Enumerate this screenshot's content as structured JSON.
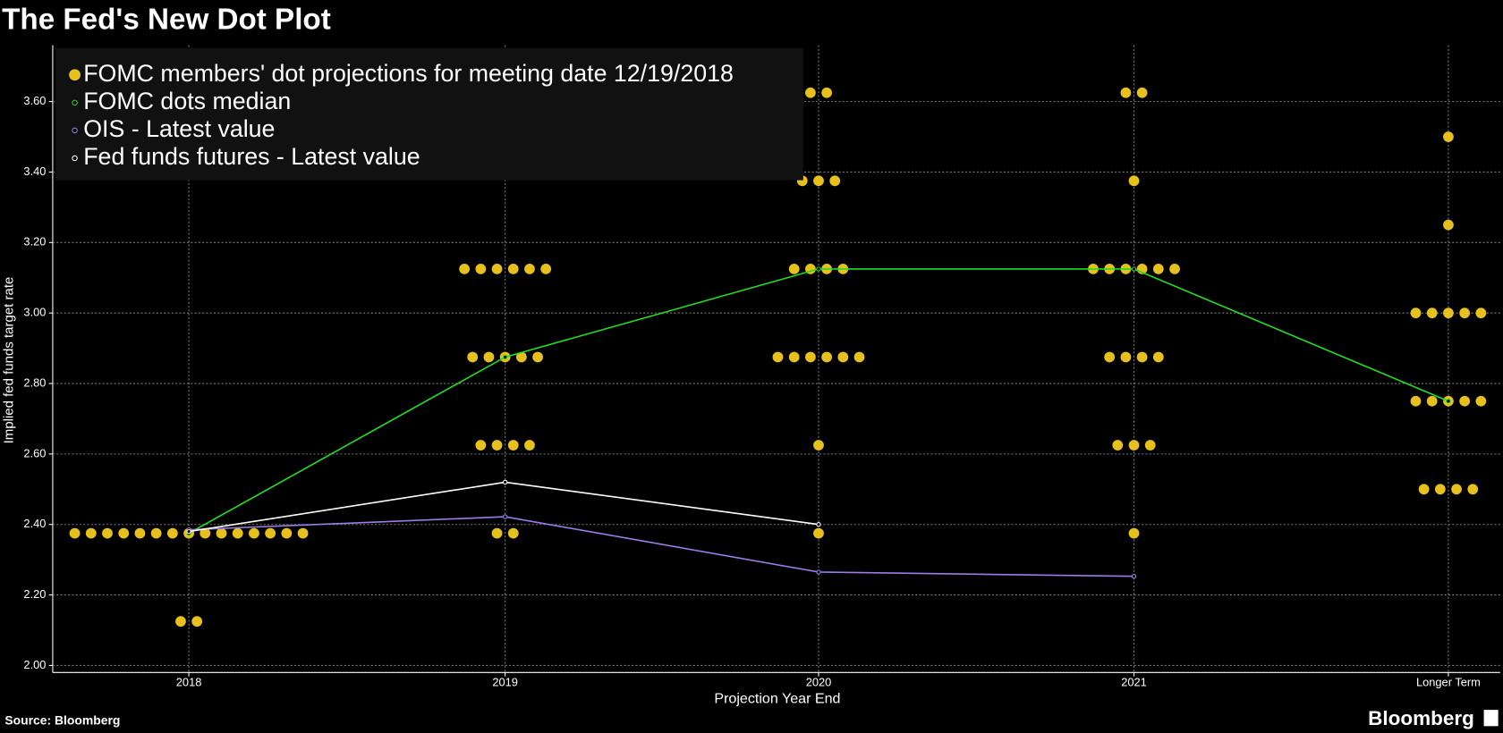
{
  "chart_data": {
    "type": "dot-plot",
    "title": "The Fed's New Dot Plot",
    "x_label": "Projection Year End",
    "y_label": "Implied fed funds target rate",
    "source": "Source: Bloomberg",
    "brand": "Bloomberg",
    "categories": [
      "2018",
      "2019",
      "2020",
      "2021",
      "Longer Term"
    ],
    "ylim": [
      1.98,
      3.76
    ],
    "yticks": [
      {
        "value": 2.0,
        "label": "2.00"
      },
      {
        "value": 2.2,
        "label": "2.20"
      },
      {
        "value": 2.4,
        "label": "2.40"
      },
      {
        "value": 2.6,
        "label": "2.60"
      },
      {
        "value": 2.8,
        "label": "2.80"
      },
      {
        "value": 3.0,
        "label": "3.00"
      },
      {
        "value": 3.2,
        "label": "3.20"
      },
      {
        "value": 3.4,
        "label": "3.40"
      },
      {
        "value": 3.6,
        "label": "3.60"
      }
    ],
    "grid": true,
    "series": [
      {
        "name": "FOMC members' dot projections for meeting date 12/19/2018",
        "kind": "dots",
        "color": "#e6c01c",
        "values": [
          [
            2.375,
            2.375,
            2.375,
            2.375,
            2.375,
            2.375,
            2.375,
            2.375,
            2.375,
            2.375,
            2.375,
            2.375,
            2.375,
            2.375,
            2.375,
            2.125,
            2.125
          ],
          [
            3.125,
            3.125,
            3.125,
            3.125,
            3.125,
            3.125,
            2.875,
            2.875,
            2.875,
            2.875,
            2.875,
            2.625,
            2.625,
            2.625,
            2.625,
            2.375,
            2.375
          ],
          [
            3.625,
            3.625,
            3.375,
            3.375,
            3.375,
            3.125,
            3.125,
            3.125,
            3.125,
            2.875,
            2.875,
            2.875,
            2.875,
            2.875,
            2.875,
            2.625,
            2.375
          ],
          [
            3.625,
            3.625,
            3.375,
            3.125,
            3.125,
            3.125,
            3.125,
            3.125,
            3.125,
            2.875,
            2.875,
            2.875,
            2.875,
            2.625,
            2.625,
            2.625,
            2.375
          ],
          [
            3.5,
            3.25,
            3.0,
            3.0,
            3.0,
            3.0,
            3.0,
            2.75,
            2.75,
            2.75,
            2.75,
            2.75,
            2.5,
            2.5,
            2.5,
            2.5
          ]
        ]
      },
      {
        "name": "FOMC dots median",
        "kind": "line",
        "color": "#22dd22",
        "values": [
          2.375,
          2.875,
          3.125,
          3.125,
          2.75
        ]
      },
      {
        "name": "OIS - Latest value",
        "kind": "line",
        "color": "#9a7de8",
        "values": [
          2.385,
          2.422,
          2.265,
          2.253,
          null
        ]
      },
      {
        "name": "Fed funds futures - Latest value",
        "kind": "line",
        "color": "#ffffff",
        "values": [
          2.38,
          2.52,
          2.4,
          null,
          null
        ]
      }
    ]
  }
}
